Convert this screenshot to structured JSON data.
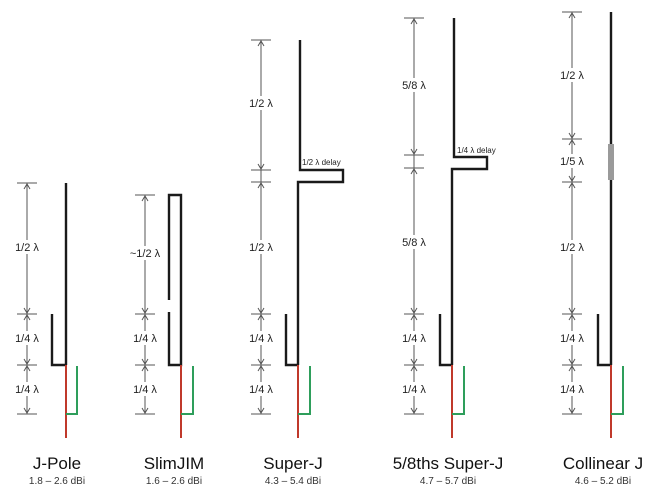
{
  "colors": {
    "radiator": "#1a1a1a",
    "feed_red": "#c0392b",
    "feed_green": "#2e9e5b",
    "dimension": "#555555",
    "phasing_coil": "#9a9a9a"
  },
  "antennas": [
    {
      "name": "J-Pole",
      "gain": "1.8 – 2.6 dBi",
      "labels": [
        "1/2 λ",
        "1/4 λ",
        "1/4 λ"
      ]
    },
    {
      "name": "SlimJIM",
      "gain": "1.6 – 2.6 dBi",
      "labels": [
        "~1/2 λ",
        "1/4 λ",
        "1/4 λ"
      ]
    },
    {
      "name": "Super-J",
      "gain": "4.3 – 5.4 dBi",
      "labels": [
        "1/2 λ",
        "1/2 λ",
        "1/4 λ",
        "1/4 λ"
      ],
      "delay_label": "1/2 λ delay"
    },
    {
      "name": "5/8ths Super-J",
      "gain": "4.7 – 5.7 dBi",
      "labels": [
        "5/8 λ",
        "5/8 λ",
        "1/4 λ",
        "1/4 λ"
      ],
      "delay_label": "1/4 λ delay"
    },
    {
      "name": "Collinear J",
      "gain": "4.6 – 5.2 dBi",
      "labels": [
        "1/2 λ",
        "1/5 λ",
        "1/2 λ",
        "1/4 λ",
        "1/4 λ"
      ]
    }
  ]
}
